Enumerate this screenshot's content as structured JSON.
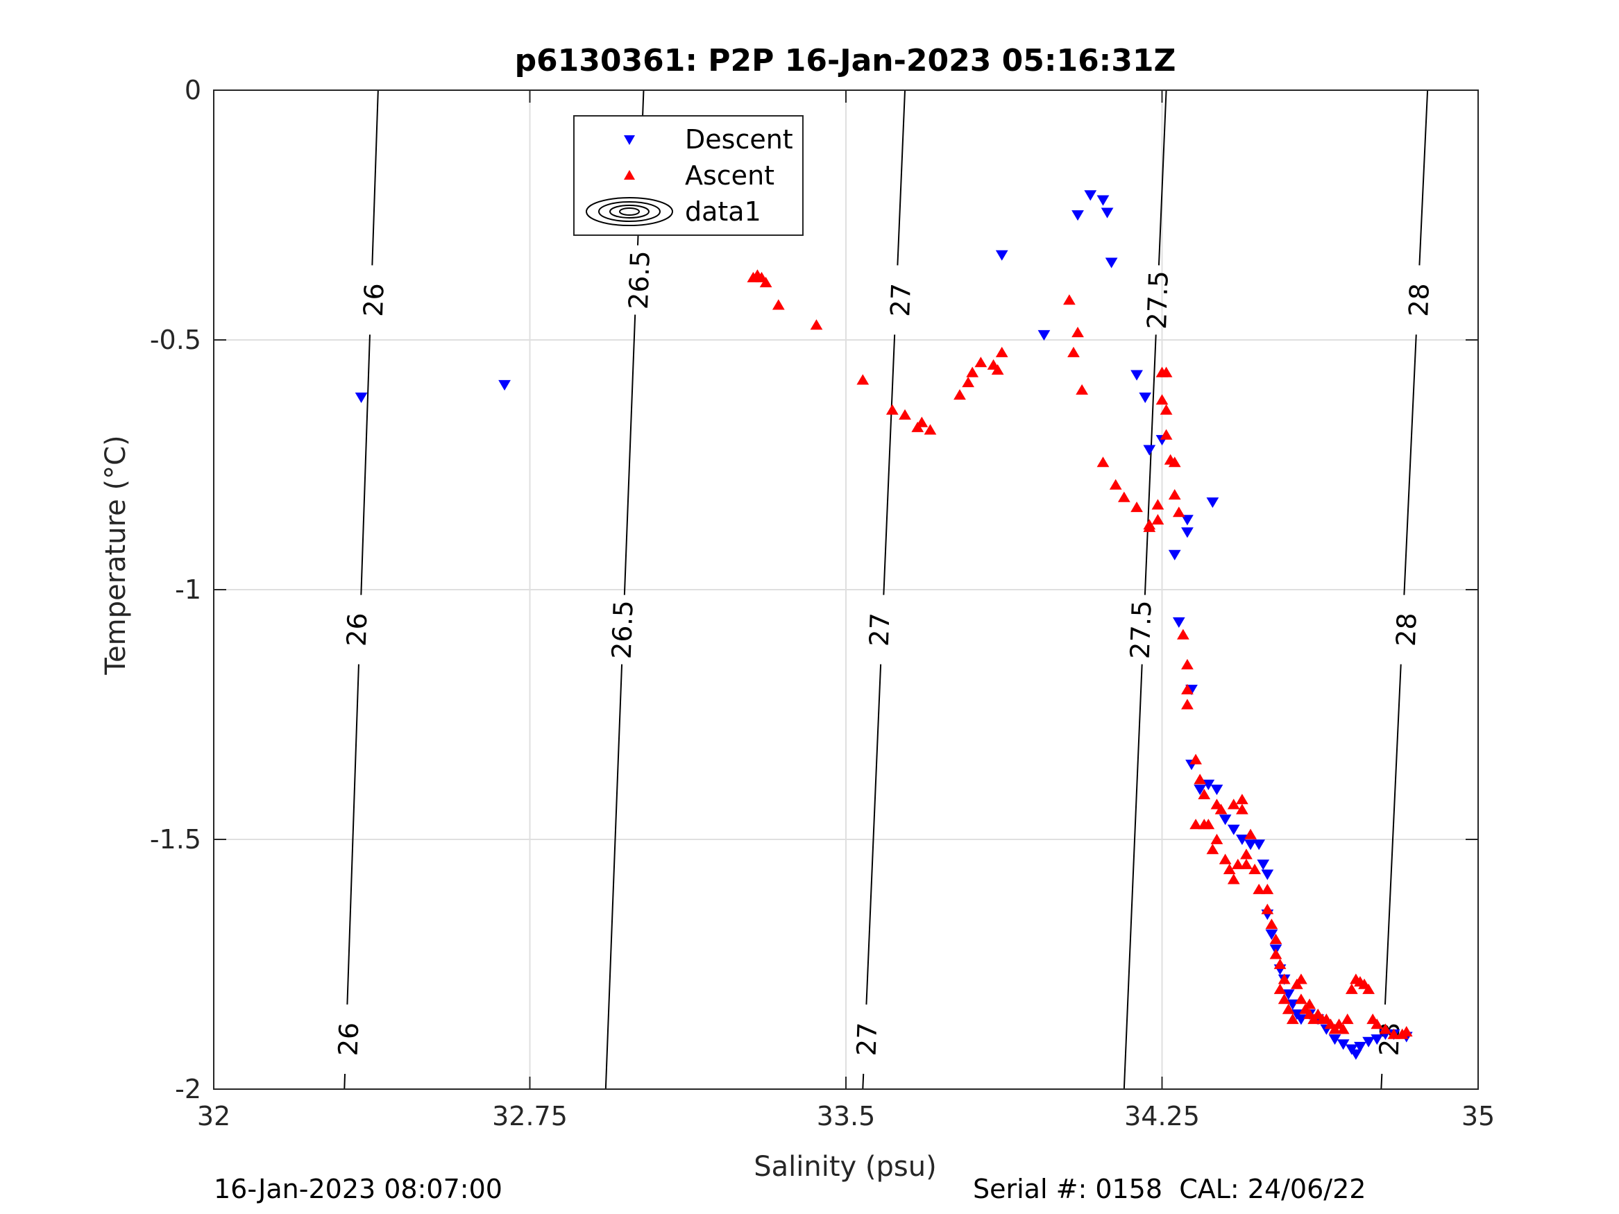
{
  "chart_data": {
    "type": "scatter",
    "title": "p6130361: P2P 16-Jan-2023 05:16:31Z",
    "xlabel": "Salinity (psu)",
    "ylabel": "Temperature (°C)",
    "xlim": [
      32,
      35
    ],
    "ylim": [
      -2,
      0
    ],
    "xticks": [
      "32",
      "32.75",
      "33.5",
      "34.25",
      "35"
    ],
    "yticks": [
      "0",
      "-0.5",
      "-1",
      "-1.5",
      "-2"
    ],
    "grid": true,
    "legend_position": "top",
    "series": [
      {
        "name": "Descent",
        "marker": "triangle-down",
        "color": "#0000ff",
        "points": [
          [
            32.35,
            -0.615
          ],
          [
            32.69,
            -0.59
          ],
          [
            33.87,
            -0.33
          ],
          [
            33.97,
            -0.49
          ],
          [
            34.05,
            -0.25
          ],
          [
            34.08,
            -0.21
          ],
          [
            34.11,
            -0.22
          ],
          [
            34.12,
            -0.245
          ],
          [
            34.13,
            -0.345
          ],
          [
            34.19,
            -0.57
          ],
          [
            34.21,
            -0.615
          ],
          [
            34.22,
            -0.72
          ],
          [
            34.25,
            -0.7
          ],
          [
            34.28,
            -0.93
          ],
          [
            34.31,
            -0.86
          ],
          [
            34.31,
            -0.885
          ],
          [
            34.37,
            -0.825
          ],
          [
            34.29,
            -1.065
          ],
          [
            34.32,
            -1.2
          ],
          [
            34.32,
            -1.35
          ],
          [
            34.34,
            -1.4
          ],
          [
            34.36,
            -1.39
          ],
          [
            34.38,
            -1.4
          ],
          [
            34.4,
            -1.46
          ],
          [
            34.42,
            -1.48
          ],
          [
            34.44,
            -1.5
          ],
          [
            34.46,
            -1.51
          ],
          [
            34.48,
            -1.51
          ],
          [
            34.49,
            -1.55
          ],
          [
            34.5,
            -1.57
          ],
          [
            34.5,
            -1.65
          ],
          [
            34.51,
            -1.69
          ],
          [
            34.52,
            -1.72
          ],
          [
            34.53,
            -1.76
          ],
          [
            34.54,
            -1.78
          ],
          [
            34.55,
            -1.81
          ],
          [
            34.56,
            -1.83
          ],
          [
            34.57,
            -1.85
          ],
          [
            34.58,
            -1.86
          ],
          [
            34.6,
            -1.85
          ],
          [
            34.62,
            -1.86
          ],
          [
            34.64,
            -1.88
          ],
          [
            34.66,
            -1.9
          ],
          [
            34.68,
            -1.91
          ],
          [
            34.7,
            -1.92
          ],
          [
            34.71,
            -1.93
          ],
          [
            34.72,
            -1.915
          ],
          [
            34.74,
            -1.905
          ],
          [
            34.76,
            -1.9
          ],
          [
            34.78,
            -1.89
          ],
          [
            34.8,
            -1.89
          ],
          [
            34.83,
            -1.895
          ]
        ]
      },
      {
        "name": "Ascent",
        "marker": "triangle-up",
        "color": "#ff0000",
        "points": [
          [
            33.28,
            -0.375
          ],
          [
            33.29,
            -0.37
          ],
          [
            33.3,
            -0.375
          ],
          [
            33.31,
            -0.385
          ],
          [
            33.34,
            -0.43
          ],
          [
            33.43,
            -0.47
          ],
          [
            33.54,
            -0.58
          ],
          [
            33.61,
            -0.64
          ],
          [
            33.64,
            -0.65
          ],
          [
            33.67,
            -0.675
          ],
          [
            33.68,
            -0.665
          ],
          [
            33.7,
            -0.68
          ],
          [
            33.77,
            -0.61
          ],
          [
            33.79,
            -0.585
          ],
          [
            33.8,
            -0.565
          ],
          [
            33.82,
            -0.545
          ],
          [
            33.85,
            -0.55
          ],
          [
            33.86,
            -0.56
          ],
          [
            33.87,
            -0.525
          ],
          [
            34.03,
            -0.42
          ],
          [
            34.04,
            -0.525
          ],
          [
            34.05,
            -0.485
          ],
          [
            34.06,
            -0.6
          ],
          [
            34.11,
            -0.745
          ],
          [
            34.14,
            -0.79
          ],
          [
            34.16,
            -0.815
          ],
          [
            34.19,
            -0.835
          ],
          [
            34.22,
            -0.87
          ],
          [
            34.22,
            -0.875
          ],
          [
            34.24,
            -0.83
          ],
          [
            34.24,
            -0.86
          ],
          [
            34.25,
            -0.565
          ],
          [
            34.26,
            -0.565
          ],
          [
            34.25,
            -0.62
          ],
          [
            34.26,
            -0.64
          ],
          [
            34.26,
            -0.69
          ],
          [
            34.27,
            -0.74
          ],
          [
            34.28,
            -0.745
          ],
          [
            34.28,
            -0.81
          ],
          [
            34.29,
            -0.845
          ],
          [
            34.3,
            -1.09
          ],
          [
            34.31,
            -1.15
          ],
          [
            34.31,
            -1.2
          ],
          [
            34.31,
            -1.23
          ],
          [
            34.33,
            -1.34
          ],
          [
            34.34,
            -1.38
          ],
          [
            34.35,
            -1.41
          ],
          [
            34.33,
            -1.47
          ],
          [
            34.35,
            -1.47
          ],
          [
            34.38,
            -1.43
          ],
          [
            34.39,
            -1.44
          ],
          [
            34.42,
            -1.43
          ],
          [
            34.44,
            -1.42
          ],
          [
            34.44,
            -1.44
          ],
          [
            34.46,
            -1.49
          ],
          [
            34.45,
            -1.53
          ],
          [
            34.45,
            -1.55
          ],
          [
            34.43,
            -1.55
          ],
          [
            34.42,
            -1.58
          ],
          [
            34.4,
            -1.54
          ],
          [
            34.41,
            -1.56
          ],
          [
            34.37,
            -1.52
          ],
          [
            34.38,
            -1.5
          ],
          [
            34.36,
            -1.47
          ],
          [
            34.47,
            -1.56
          ],
          [
            34.48,
            -1.6
          ],
          [
            34.5,
            -1.6
          ],
          [
            34.5,
            -1.64
          ],
          [
            34.51,
            -1.67
          ],
          [
            34.52,
            -1.7
          ],
          [
            34.52,
            -1.73
          ],
          [
            34.53,
            -1.75
          ],
          [
            34.54,
            -1.78
          ],
          [
            34.53,
            -1.8
          ],
          [
            34.54,
            -1.82
          ],
          [
            34.55,
            -1.84
          ],
          [
            34.56,
            -1.86
          ],
          [
            34.57,
            -1.79
          ],
          [
            34.58,
            -1.78
          ],
          [
            34.58,
            -1.82
          ],
          [
            34.59,
            -1.84
          ],
          [
            34.6,
            -1.83
          ],
          [
            34.6,
            -1.85
          ],
          [
            34.61,
            -1.86
          ],
          [
            34.62,
            -1.85
          ],
          [
            34.63,
            -1.86
          ],
          [
            34.64,
            -1.86
          ],
          [
            34.65,
            -1.87
          ],
          [
            34.66,
            -1.88
          ],
          [
            34.67,
            -1.87
          ],
          [
            34.68,
            -1.88
          ],
          [
            34.69,
            -1.86
          ],
          [
            34.7,
            -1.8
          ],
          [
            34.71,
            -1.78
          ],
          [
            34.72,
            -1.785
          ],
          [
            34.73,
            -1.79
          ],
          [
            34.74,
            -1.8
          ],
          [
            34.75,
            -1.86
          ],
          [
            34.76,
            -1.87
          ],
          [
            34.78,
            -1.88
          ],
          [
            34.8,
            -1.89
          ],
          [
            34.82,
            -1.89
          ],
          [
            34.83,
            -1.885
          ]
        ]
      },
      {
        "name": "data1",
        "marker": "contour",
        "color": "#000000",
        "contour_levels": [
          {
            "label": "26",
            "x_at_top": 32.39,
            "x_at_bottom": 32.31,
            "label_positions": [
              [
                32.38,
                -0.42
              ],
              [
                32.34,
                -1.08
              ],
              [
                32.32,
                -1.9
              ]
            ]
          },
          {
            "label": "26.5",
            "x_at_top": 33.02,
            "x_at_bottom": 32.93,
            "label_positions": [
              [
                33.01,
                -0.38
              ],
              [
                32.97,
                -1.08
              ]
            ]
          },
          {
            "label": "27",
            "x_at_top": 33.64,
            "x_at_bottom": 33.54,
            "label_positions": [
              [
                33.63,
                -0.42
              ],
              [
                33.58,
                -1.08
              ],
              [
                33.55,
                -1.9
              ]
            ]
          },
          {
            "label": "27.5",
            "x_at_top": 34.26,
            "x_at_bottom": 34.16,
            "label_positions": [
              [
                34.24,
                -0.42
              ],
              [
                34.2,
                -1.08
              ]
            ]
          },
          {
            "label": "28",
            "x_at_top": 34.88,
            "x_at_bottom": 34.77,
            "label_positions": [
              [
                34.86,
                -0.42
              ],
              [
                34.83,
                -1.08
              ],
              [
                34.79,
                -1.9
              ]
            ]
          }
        ]
      }
    ],
    "legend": {
      "entries": [
        {
          "label": "Descent",
          "symbol": "triangle-down",
          "color": "#0000ff"
        },
        {
          "label": "Ascent",
          "symbol": "triangle-up",
          "color": "#ff0000"
        },
        {
          "label": "data1",
          "symbol": "contour-ellipses",
          "color": "#000000"
        }
      ]
    }
  },
  "footer": {
    "left": "16-Jan-2023 08:07:00",
    "right": "Serial #: 0158  CAL: 24/06/22"
  }
}
